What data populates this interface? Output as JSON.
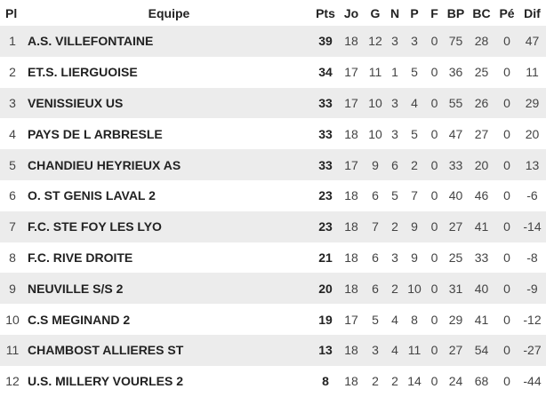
{
  "headers": {
    "pl": "Pl",
    "equipe": "Equipe",
    "pts": "Pts",
    "jo": "Jo",
    "g": "G",
    "n": "N",
    "p": "P",
    "f": "F",
    "bp": "BP",
    "bc": "BC",
    "pe": "Pé",
    "dif": "Dif"
  },
  "rows": [
    {
      "pl": "1",
      "team": "A.S. VILLEFONTAINE",
      "pts": "39",
      "jo": "18",
      "g": "12",
      "n": "3",
      "p": "3",
      "f": "0",
      "bp": "75",
      "bc": "28",
      "pe": "0",
      "dif": "47"
    },
    {
      "pl": "2",
      "team": "ET.S. LIERGUOISE",
      "pts": "34",
      "jo": "17",
      "g": "11",
      "n": "1",
      "p": "5",
      "f": "0",
      "bp": "36",
      "bc": "25",
      "pe": "0",
      "dif": "11"
    },
    {
      "pl": "3",
      "team": "VENISSIEUX US",
      "pts": "33",
      "jo": "17",
      "g": "10",
      "n": "3",
      "p": "4",
      "f": "0",
      "bp": "55",
      "bc": "26",
      "pe": "0",
      "dif": "29"
    },
    {
      "pl": "4",
      "team": "PAYS DE L ARBRESLE",
      "pts": "33",
      "jo": "18",
      "g": "10",
      "n": "3",
      "p": "5",
      "f": "0",
      "bp": "47",
      "bc": "27",
      "pe": "0",
      "dif": "20"
    },
    {
      "pl": "5",
      "team": "CHANDIEU HEYRIEUX AS",
      "pts": "33",
      "jo": "17",
      "g": "9",
      "n": "6",
      "p": "2",
      "f": "0",
      "bp": "33",
      "bc": "20",
      "pe": "0",
      "dif": "13"
    },
    {
      "pl": "6",
      "team": "O. ST GENIS LAVAL 2",
      "pts": "23",
      "jo": "18",
      "g": "6",
      "n": "5",
      "p": "7",
      "f": "0",
      "bp": "40",
      "bc": "46",
      "pe": "0",
      "dif": "-6"
    },
    {
      "pl": "7",
      "team": "F.C. STE FOY LES LYO",
      "pts": "23",
      "jo": "18",
      "g": "7",
      "n": "2",
      "p": "9",
      "f": "0",
      "bp": "27",
      "bc": "41",
      "pe": "0",
      "dif": "-14"
    },
    {
      "pl": "8",
      "team": "F.C. RIVE DROITE",
      "pts": "21",
      "jo": "18",
      "g": "6",
      "n": "3",
      "p": "9",
      "f": "0",
      "bp": "25",
      "bc": "33",
      "pe": "0",
      "dif": "-8"
    },
    {
      "pl": "9",
      "team": "NEUVILLE S/S 2",
      "pts": "20",
      "jo": "18",
      "g": "6",
      "n": "2",
      "p": "10",
      "f": "0",
      "bp": "31",
      "bc": "40",
      "pe": "0",
      "dif": "-9"
    },
    {
      "pl": "10",
      "team": "C.S MEGINAND 2",
      "pts": "19",
      "jo": "17",
      "g": "5",
      "n": "4",
      "p": "8",
      "f": "0",
      "bp": "29",
      "bc": "41",
      "pe": "0",
      "dif": "-12"
    },
    {
      "pl": "11",
      "team": "CHAMBOST ALLIERES ST",
      "pts": "13",
      "jo": "18",
      "g": "3",
      "n": "4",
      "p": "11",
      "f": "0",
      "bp": "27",
      "bc": "54",
      "pe": "0",
      "dif": "-27"
    },
    {
      "pl": "12",
      "team": "U.S. MILLERY VOURLES 2",
      "pts": "8",
      "jo": "18",
      "g": "2",
      "n": "2",
      "p": "14",
      "f": "0",
      "bp": "24",
      "bc": "68",
      "pe": "0",
      "dif": "-44"
    }
  ]
}
